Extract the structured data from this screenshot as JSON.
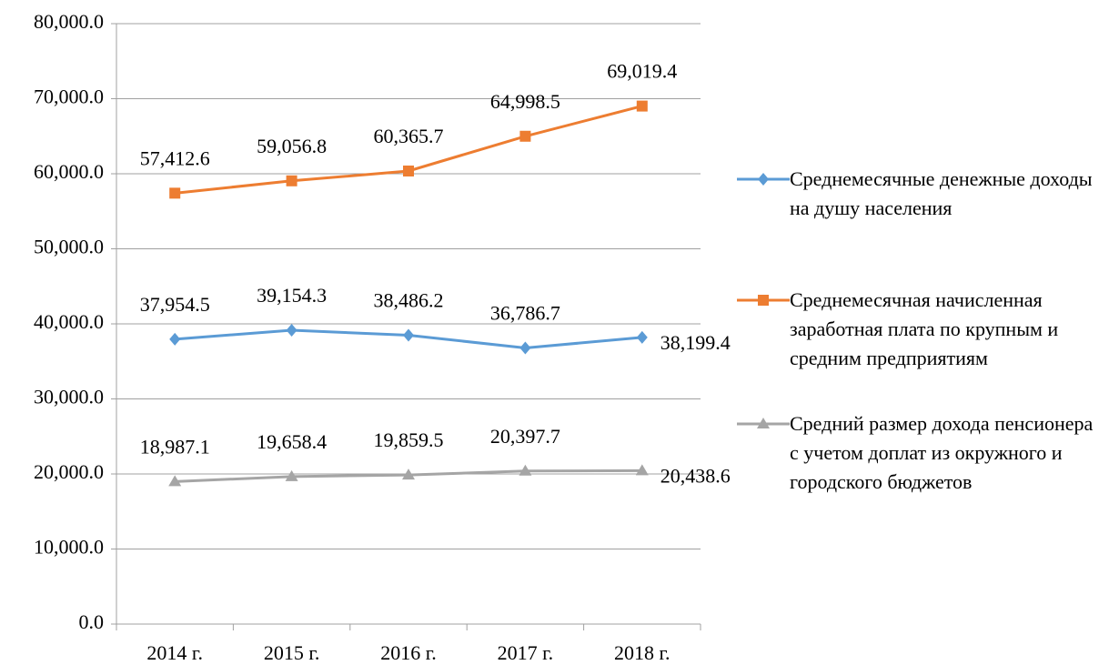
{
  "chart_data": {
    "type": "line",
    "categories": [
      "2014 г.",
      "2015 г.",
      "2016 г.",
      "2017 г.",
      "2018 г."
    ],
    "series": [
      {
        "name": "Среднемесячные денежные доходы на душу населения",
        "color": "#5b9bd5",
        "marker": "diamond",
        "values": [
          37954.5,
          39154.3,
          38486.2,
          36786.7,
          38199.4
        ],
        "value_labels": [
          "37,954.5",
          "39,154.3",
          "38,486.2",
          "36,786.7",
          "38,199.4"
        ]
      },
      {
        "name": "Среднемесячная начисленная заработная плата по крупным и средним предприятиям",
        "color": "#ed7d31",
        "marker": "square",
        "values": [
          57412.6,
          59056.8,
          60365.7,
          64998.5,
          69019.4
        ],
        "value_labels": [
          "57,412.6",
          "59,056.8",
          "60,365.7",
          "64,998.5",
          "69,019.4"
        ]
      },
      {
        "name": "Средний размер дохода пенсионера с учетом доплат из окружного и городского бюджетов",
        "color": "#a5a5a5",
        "marker": "triangle",
        "values": [
          18987.1,
          19658.4,
          19859.5,
          20397.7,
          20438.6
        ],
        "value_labels": [
          "18,987.1",
          "19,658.4",
          "19,859.5",
          "20,397.7",
          "20,438.6"
        ]
      }
    ],
    "ylim": [
      0,
      80000
    ],
    "yticks": [
      {
        "value": 0,
        "label": "0.0"
      },
      {
        "value": 10000,
        "label": "10,000.0"
      },
      {
        "value": 20000,
        "label": "20,000.0"
      },
      {
        "value": 30000,
        "label": "30,000.0"
      },
      {
        "value": 40000,
        "label": "40,000.0"
      },
      {
        "value": 50000,
        "label": "50,000.0"
      },
      {
        "value": 60000,
        "label": "60,000.0"
      },
      {
        "value": 70000,
        "label": "70,000.0"
      },
      {
        "value": 80000,
        "label": "80,000.0"
      }
    ],
    "grid": true,
    "legend": "right"
  }
}
